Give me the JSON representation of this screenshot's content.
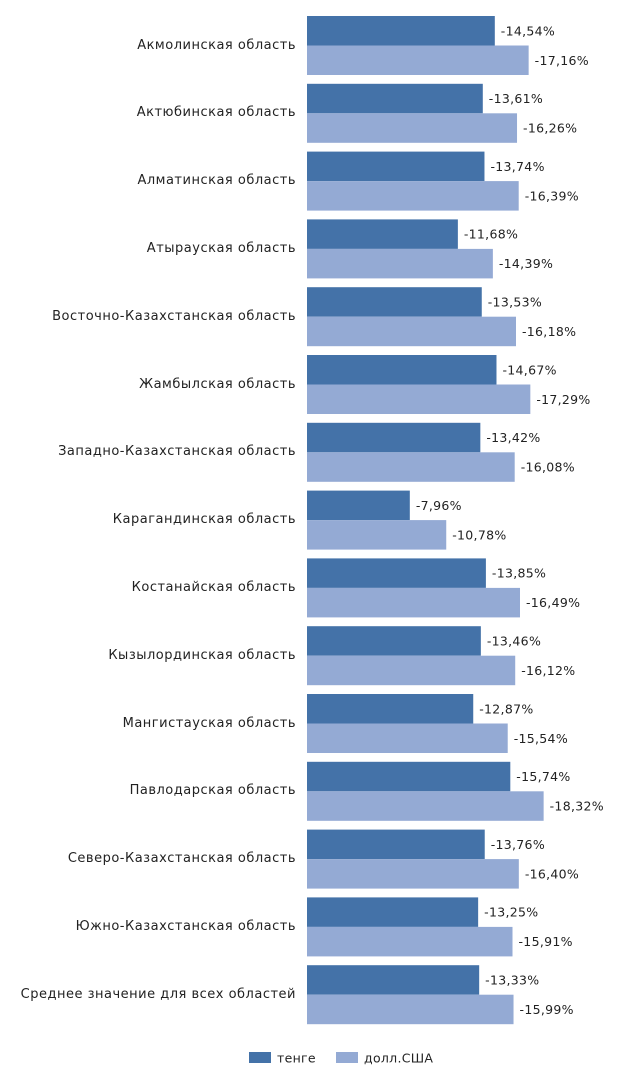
{
  "chart_data": {
    "type": "hbar",
    "categories": [
      "Акмолинская область",
      "Актюбинская область",
      "Алматинская область",
      "Атырауская область",
      "Восточно-Казахстанская область",
      "Жамбылская область",
      "Западно-Казахстанская область",
      "Карагандинская область",
      "Костанайская область",
      "Кызылординская область",
      "Мангистауская область",
      "Павлодарская область",
      "Северо-Казахстанская область",
      "Южно-Казахстанская область",
      "Среднее значение для всех областей"
    ],
    "series": [
      {
        "name": "тенге",
        "color": "#4472a8",
        "values": [
          -14.54,
          -13.61,
          -13.74,
          -11.68,
          -13.53,
          -14.67,
          -13.42,
          -7.96,
          -13.85,
          -13.46,
          -12.87,
          -15.74,
          -13.76,
          -13.25,
          -13.33
        ],
        "value_labels": [
          "-14,54%",
          "-13,61%",
          "-13,74%",
          "-11,68%",
          "-13,53%",
          "-14,67%",
          "-13,42%",
          "-7,96%",
          "-13,85%",
          "-13,46%",
          "-12,87%",
          "-15,74%",
          "-13,76%",
          "-13,25%",
          "-13,33%"
        ]
      },
      {
        "name": "долл.США",
        "color": "#94aad4",
        "values": [
          -17.16,
          -16.26,
          -16.39,
          -14.39,
          -16.18,
          -17.29,
          -16.08,
          -10.78,
          -16.49,
          -16.12,
          -15.54,
          -18.32,
          -16.4,
          -15.91,
          -15.99
        ],
        "value_labels": [
          "-17,16%",
          "-16,26%",
          "-16,39%",
          "-14,39%",
          "-16,18%",
          "-17,29%",
          "-16,08%",
          "-10,78%",
          "-16,49%",
          "-16,12%",
          "-15,54%",
          "-18,32%",
          "-16,40%",
          "-15,91%",
          "-15,99%"
        ]
      }
    ],
    "xlim": [
      0,
      -24
    ],
    "legend": "bottom"
  }
}
